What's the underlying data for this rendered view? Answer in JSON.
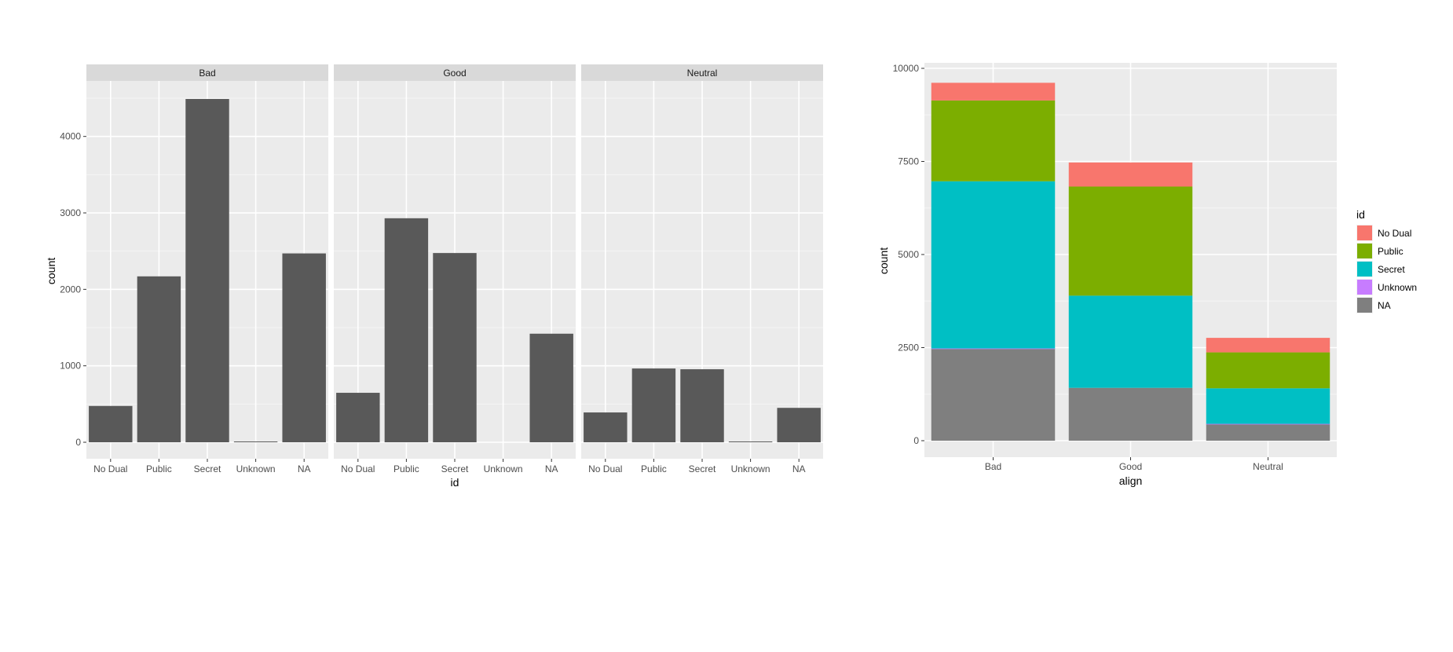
{
  "chart_data": [
    {
      "type": "bar",
      "facet_by": "align",
      "facets": [
        "Bad",
        "Good",
        "Neutral"
      ],
      "categories": [
        "No Dual",
        "Public",
        "Secret",
        "Unknown",
        "NA"
      ],
      "panels": [
        {
          "facet": "Bad",
          "values": [
            475,
            2170,
            4490,
            7,
            2470
          ]
        },
        {
          "facet": "Good",
          "values": [
            647,
            2930,
            2475,
            0,
            1420
          ]
        },
        {
          "facet": "Neutral",
          "values": [
            390,
            965,
            955,
            2,
            450
          ]
        }
      ],
      "xlabel": "id",
      "ylabel": "count",
      "ylim": [
        0,
        4700
      ],
      "yticks": [
        0,
        1000,
        2000,
        3000,
        4000
      ],
      "grid": true,
      "bar_color": "#595959"
    },
    {
      "type": "bar",
      "stacked": true,
      "categories": [
        "Bad",
        "Good",
        "Neutral"
      ],
      "series": [
        {
          "name": "No Dual",
          "color": "#F8766D",
          "values": [
            475,
            647,
            390
          ]
        },
        {
          "name": "Public",
          "color": "#7CAE00",
          "values": [
            2170,
            2930,
            965
          ]
        },
        {
          "name": "Secret",
          "color": "#00BFC4",
          "values": [
            4490,
            2475,
            955
          ]
        },
        {
          "name": "Unknown",
          "color": "#C77CFF",
          "values": [
            7,
            0,
            2
          ]
        },
        {
          "name": "NA",
          "color": "#7F7F7F",
          "values": [
            2470,
            1420,
            450
          ]
        }
      ],
      "xlabel": "align",
      "ylabel": "count",
      "ylim": [
        0,
        10000
      ],
      "yticks": [
        0,
        2500,
        5000,
        7500,
        10000
      ],
      "legend_title": "id",
      "legend_position": "right",
      "grid": true
    }
  ]
}
